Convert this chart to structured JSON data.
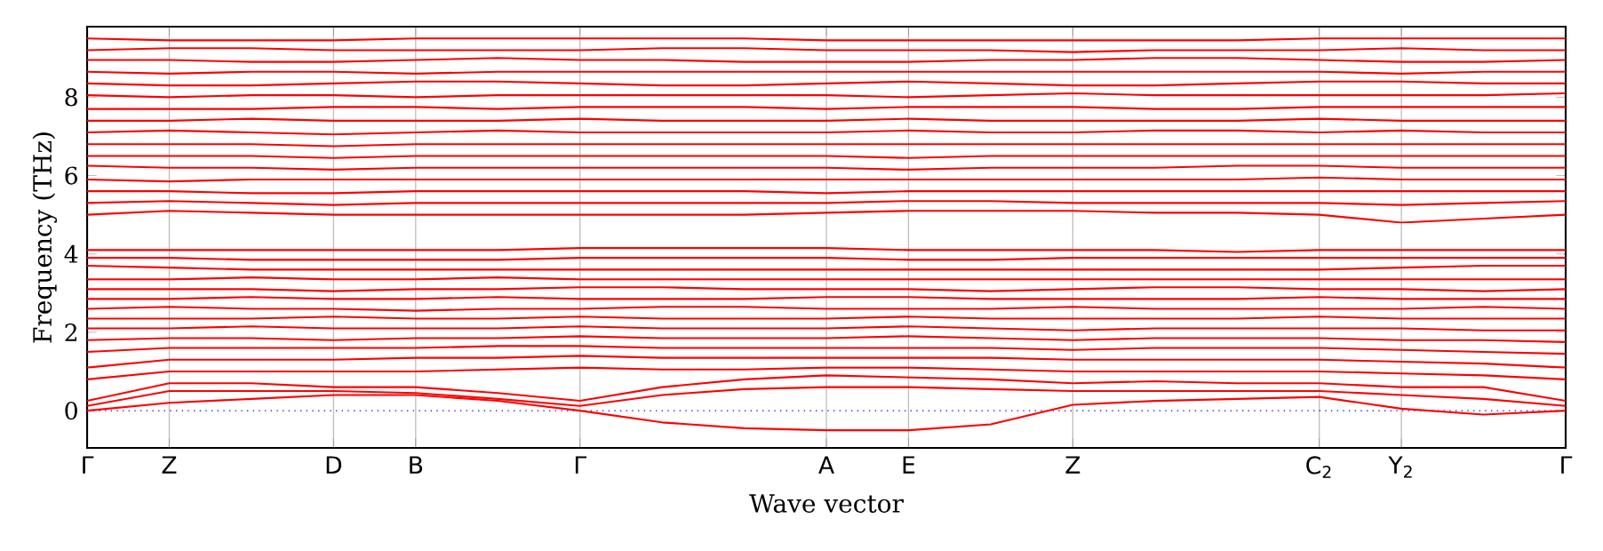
{
  "chart_data": {
    "type": "line",
    "xlabel": "Wave vector",
    "ylabel": "Frequency (THz)",
    "color": "#ff0000",
    "marker": "none",
    "line_style": "solid",
    "grid": "x",
    "categories": [
      "Γ",
      "Z",
      null,
      "D",
      "B",
      null,
      "Γ",
      null,
      null,
      "A",
      "E",
      null,
      "Z",
      null,
      null,
      "C$_{2}$",
      "Y$_{2}$",
      null,
      "Γ"
    ],
    "ylim": [
      -0.95,
      9.8
    ],
    "yticks": [
      0,
      2,
      4,
      6,
      8
    ],
    "ref_lines": [
      {
        "axis": "y",
        "value": 0,
        "color": "#0000ff",
        "line_style": "dotted"
      }
    ],
    "series": [
      {
        "values": [
          0,
          0.2,
          0.3,
          0.4,
          0.4,
          0.25,
          0,
          -0.3,
          -0.45,
          -0.5,
          -0.5,
          -0.35,
          0.15,
          0.25,
          0.3,
          0.35,
          0.05,
          -0.1,
          0
        ]
      },
      {
        "values": [
          0.12,
          0.5,
          0.5,
          0.5,
          0.45,
          0.3,
          0.12,
          0.4,
          0.55,
          0.6,
          0.6,
          0.55,
          0.5,
          0.5,
          0.5,
          0.5,
          0.4,
          0.3,
          0.12
        ]
      },
      {
        "values": [
          0.25,
          0.7,
          0.7,
          0.6,
          0.6,
          0.45,
          0.25,
          0.6,
          0.8,
          0.9,
          0.85,
          0.8,
          0.7,
          0.75,
          0.7,
          0.7,
          0.6,
          0.6,
          0.25
        ]
      },
      {
        "values": [
          0.8,
          1.0,
          1.0,
          1.0,
          1.0,
          1.05,
          1.1,
          1.05,
          1.05,
          1.1,
          1.1,
          1.05,
          1.0,
          1.0,
          1.0,
          1.0,
          0.95,
          0.9,
          0.8
        ]
      },
      {
        "values": [
          1.1,
          1.3,
          1.3,
          1.3,
          1.35,
          1.35,
          1.4,
          1.35,
          1.35,
          1.35,
          1.35,
          1.35,
          1.3,
          1.3,
          1.3,
          1.3,
          1.25,
          1.2,
          1.1
        ]
      },
      {
        "values": [
          1.5,
          1.6,
          1.6,
          1.6,
          1.6,
          1.65,
          1.65,
          1.6,
          1.6,
          1.6,
          1.6,
          1.6,
          1.55,
          1.6,
          1.6,
          1.6,
          1.55,
          1.5,
          1.45
        ]
      },
      {
        "values": [
          1.8,
          1.85,
          1.85,
          1.8,
          1.85,
          1.85,
          1.9,
          1.85,
          1.85,
          1.85,
          1.9,
          1.85,
          1.8,
          1.85,
          1.85,
          1.85,
          1.8,
          1.8,
          1.75
        ]
      },
      {
        "values": [
          2.1,
          2.1,
          2.15,
          2.1,
          2.1,
          2.1,
          2.15,
          2.1,
          2.1,
          2.1,
          2.15,
          2.1,
          2.05,
          2.1,
          2.1,
          2.1,
          2.1,
          2.05,
          2.05
        ]
      },
      {
        "values": [
          2.35,
          2.35,
          2.35,
          2.4,
          2.35,
          2.35,
          2.4,
          2.35,
          2.35,
          2.35,
          2.4,
          2.35,
          2.35,
          2.35,
          2.35,
          2.4,
          2.35,
          2.35,
          2.35
        ]
      },
      {
        "values": [
          2.6,
          2.65,
          2.6,
          2.6,
          2.55,
          2.6,
          2.6,
          2.65,
          2.65,
          2.6,
          2.6,
          2.6,
          2.65,
          2.6,
          2.6,
          2.6,
          2.6,
          2.65,
          2.6
        ]
      },
      {
        "values": [
          2.85,
          2.85,
          2.9,
          2.85,
          2.85,
          2.9,
          2.85,
          2.85,
          2.85,
          2.9,
          2.9,
          2.85,
          2.85,
          2.85,
          2.85,
          2.9,
          2.85,
          2.85,
          2.85
        ]
      },
      {
        "values": [
          3.1,
          3.1,
          3.1,
          3.05,
          3.1,
          3.1,
          3.15,
          3.15,
          3.1,
          3.1,
          3.1,
          3.05,
          3.1,
          3.15,
          3.15,
          3.1,
          3.1,
          3.05,
          3.1
        ]
      },
      {
        "values": [
          3.35,
          3.35,
          3.4,
          3.35,
          3.35,
          3.4,
          3.35,
          3.35,
          3.35,
          3.35,
          3.35,
          3.35,
          3.35,
          3.35,
          3.35,
          3.35,
          3.35,
          3.35,
          3.35
        ]
      },
      {
        "values": [
          3.7,
          3.65,
          3.6,
          3.6,
          3.6,
          3.6,
          3.6,
          3.6,
          3.6,
          3.6,
          3.6,
          3.6,
          3.6,
          3.6,
          3.6,
          3.6,
          3.65,
          3.7,
          3.7
        ]
      },
      {
        "values": [
          3.9,
          3.9,
          3.85,
          3.85,
          3.85,
          3.85,
          3.9,
          3.9,
          3.9,
          3.9,
          3.85,
          3.85,
          3.9,
          3.9,
          3.9,
          3.9,
          3.9,
          3.9,
          3.9
        ]
      },
      {
        "values": [
          4.1,
          4.1,
          4.1,
          4.1,
          4.1,
          4.1,
          4.15,
          4.15,
          4.15,
          4.15,
          4.1,
          4.1,
          4.1,
          4.1,
          4.05,
          4.1,
          4.1,
          4.1,
          4.1
        ]
      },
      {
        "values": [
          5.0,
          5.1,
          5.05,
          5.0,
          5.0,
          5.0,
          5.0,
          5.0,
          5.0,
          5.05,
          5.1,
          5.1,
          5.1,
          5.05,
          5.05,
          5.0,
          4.8,
          4.9,
          5.0
        ]
      },
      {
        "values": [
          5.3,
          5.35,
          5.3,
          5.25,
          5.3,
          5.3,
          5.3,
          5.3,
          5.3,
          5.3,
          5.35,
          5.35,
          5.3,
          5.3,
          5.3,
          5.3,
          5.25,
          5.3,
          5.35
        ]
      },
      {
        "values": [
          5.6,
          5.6,
          5.55,
          5.55,
          5.6,
          5.6,
          5.6,
          5.6,
          5.6,
          5.55,
          5.6,
          5.6,
          5.6,
          5.6,
          5.6,
          5.6,
          5.6,
          5.6,
          5.6
        ]
      },
      {
        "values": [
          5.9,
          5.85,
          5.9,
          5.9,
          5.9,
          5.9,
          5.9,
          5.9,
          5.9,
          5.9,
          5.9,
          5.9,
          5.9,
          5.9,
          5.9,
          5.95,
          5.9,
          5.9,
          5.9
        ]
      },
      {
        "values": [
          6.25,
          6.2,
          6.2,
          6.15,
          6.2,
          6.2,
          6.2,
          6.2,
          6.2,
          6.2,
          6.15,
          6.2,
          6.2,
          6.2,
          6.25,
          6.25,
          6.2,
          6.2,
          6.2
        ]
      },
      {
        "values": [
          6.5,
          6.5,
          6.5,
          6.45,
          6.5,
          6.5,
          6.5,
          6.5,
          6.5,
          6.5,
          6.45,
          6.5,
          6.5,
          6.5,
          6.5,
          6.5,
          6.5,
          6.5,
          6.5
        ]
      },
      {
        "values": [
          6.8,
          6.8,
          6.8,
          6.75,
          6.8,
          6.8,
          6.8,
          6.8,
          6.8,
          6.8,
          6.8,
          6.8,
          6.8,
          6.8,
          6.8,
          6.8,
          6.8,
          6.8,
          6.8
        ]
      },
      {
        "values": [
          7.1,
          7.15,
          7.1,
          7.05,
          7.1,
          7.15,
          7.1,
          7.1,
          7.1,
          7.1,
          7.15,
          7.1,
          7.1,
          7.15,
          7.15,
          7.1,
          7.15,
          7.1,
          7.1
        ]
      },
      {
        "values": [
          7.4,
          7.4,
          7.45,
          7.4,
          7.4,
          7.4,
          7.45,
          7.4,
          7.4,
          7.4,
          7.45,
          7.4,
          7.4,
          7.4,
          7.4,
          7.45,
          7.4,
          7.4,
          7.4
        ]
      },
      {
        "values": [
          7.7,
          7.7,
          7.7,
          7.75,
          7.75,
          7.7,
          7.75,
          7.75,
          7.75,
          7.7,
          7.75,
          7.75,
          7.75,
          7.7,
          7.7,
          7.75,
          7.75,
          7.75,
          7.75
        ]
      },
      {
        "values": [
          8.05,
          8.0,
          8.05,
          8.05,
          8.0,
          8.05,
          8.05,
          8.05,
          8.05,
          8.05,
          8.0,
          8.05,
          8.1,
          8.05,
          8.05,
          8.05,
          8.05,
          8.05,
          8.1
        ]
      },
      {
        "values": [
          8.35,
          8.3,
          8.3,
          8.35,
          8.4,
          8.4,
          8.35,
          8.3,
          8.3,
          8.35,
          8.4,
          8.35,
          8.3,
          8.3,
          8.35,
          8.4,
          8.4,
          8.35,
          8.35
        ]
      },
      {
        "values": [
          8.65,
          8.6,
          8.65,
          8.65,
          8.6,
          8.65,
          8.65,
          8.65,
          8.65,
          8.65,
          8.65,
          8.65,
          8.65,
          8.65,
          8.65,
          8.65,
          8.6,
          8.65,
          8.65
        ]
      },
      {
        "values": [
          8.95,
          8.95,
          8.9,
          8.9,
          8.95,
          9.0,
          8.95,
          8.95,
          8.9,
          8.9,
          8.9,
          8.95,
          8.95,
          9.0,
          9.0,
          8.95,
          8.9,
          8.9,
          8.95
        ]
      },
      {
        "values": [
          9.2,
          9.25,
          9.25,
          9.2,
          9.2,
          9.2,
          9.2,
          9.25,
          9.25,
          9.2,
          9.2,
          9.2,
          9.15,
          9.2,
          9.2,
          9.2,
          9.25,
          9.2,
          9.2
        ]
      },
      {
        "values": [
          9.5,
          9.45,
          9.45,
          9.45,
          9.5,
          9.5,
          9.5,
          9.5,
          9.5,
          9.45,
          9.45,
          9.45,
          9.45,
          9.45,
          9.45,
          9.5,
          9.5,
          9.5,
          9.5
        ]
      }
    ]
  }
}
